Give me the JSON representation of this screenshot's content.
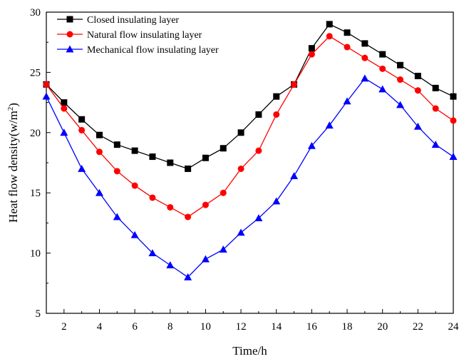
{
  "chart_data": {
    "type": "line",
    "title": "",
    "xlabel": "Time/h",
    "ylabel_main": "Heat flow density(w/m",
    "ylabel_sup": "2",
    "ylabel_close": ")",
    "xlim": [
      1,
      24
    ],
    "ylim": [
      5,
      30
    ],
    "xticks": [
      2,
      4,
      6,
      8,
      10,
      12,
      14,
      16,
      18,
      20,
      22,
      24
    ],
    "yticks": [
      5,
      10,
      15,
      20,
      25,
      30
    ],
    "grid": false,
    "legend_position": "top-left",
    "x": [
      1,
      2,
      3,
      4,
      5,
      6,
      7,
      8,
      9,
      10,
      11,
      12,
      13,
      14,
      15,
      16,
      17,
      18,
      19,
      20,
      21,
      22,
      23,
      24
    ],
    "series": [
      {
        "name": "Closed insulating layer",
        "color": "#000000",
        "marker": "square",
        "values": [
          24.0,
          22.5,
          21.1,
          19.8,
          19.0,
          18.5,
          18.0,
          17.5,
          17.0,
          17.9,
          18.7,
          20.0,
          21.5,
          23.0,
          24.0,
          27.0,
          29.0,
          28.3,
          27.4,
          26.5,
          25.6,
          24.7,
          23.7,
          23.0
        ]
      },
      {
        "name": "Natural flow insulating layer",
        "color": "#ff0000",
        "marker": "circle",
        "values": [
          24.0,
          22.0,
          20.2,
          18.4,
          16.8,
          15.6,
          14.6,
          13.8,
          13.0,
          14.0,
          15.0,
          17.0,
          18.5,
          21.5,
          24.0,
          26.5,
          28.0,
          27.1,
          26.2,
          25.3,
          24.4,
          23.5,
          22.0,
          21.0
        ]
      },
      {
        "name": "Mechanical flow insulating layer",
        "color": "#0000ff",
        "marker": "triangle",
        "values": [
          23.0,
          20.0,
          17.0,
          15.0,
          13.0,
          11.5,
          10.0,
          9.0,
          8.0,
          9.5,
          10.3,
          11.7,
          12.9,
          14.3,
          16.4,
          18.9,
          20.6,
          22.6,
          24.5,
          23.6,
          22.3,
          20.5,
          19.0,
          18.0
        ]
      }
    ]
  }
}
